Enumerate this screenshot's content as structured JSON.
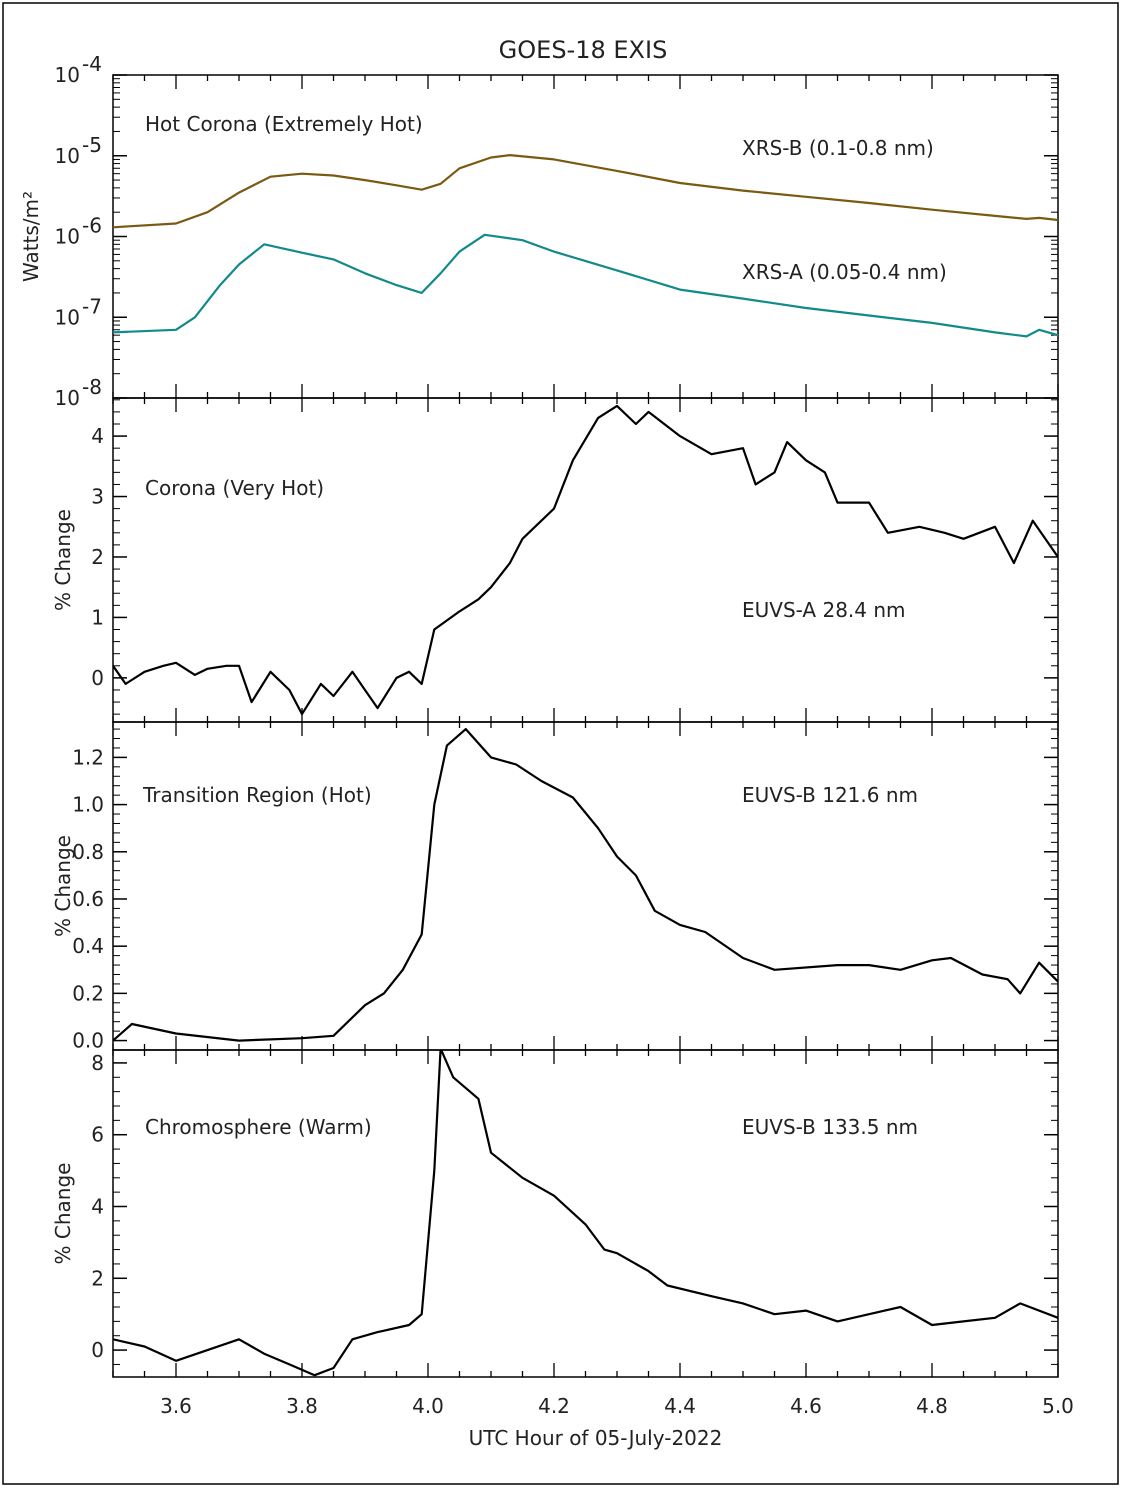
{
  "title": "GOES-18 EXIS",
  "chart_data": [
    {
      "type": "line",
      "panel_label": "Hot Corona (Extremely Hot)",
      "ylabel": "Watts/m²",
      "yscale": "log",
      "ylim": [
        1e-08,
        0.0001
      ],
      "xlim": [
        3.5,
        5.0
      ],
      "yticks": [
        {
          "label": "10",
          "exp": "-4",
          "v": 0.0001
        },
        {
          "label": "10",
          "exp": "-5",
          "v": 1e-05
        },
        {
          "label": "10",
          "exp": "-6",
          "v": 1e-06
        },
        {
          "label": "10",
          "exp": "-7",
          "v": 1e-07
        },
        {
          "label": "10",
          "exp": "-8",
          "v": 1e-08
        }
      ],
      "series": [
        {
          "name": "XRS-B (0.1-0.8 nm)",
          "color": "#7a5a10",
          "label_color": "#9a7a14",
          "x": [
            3.5,
            3.6,
            3.65,
            3.7,
            3.75,
            3.8,
            3.85,
            3.9,
            3.95,
            3.99,
            4.02,
            4.05,
            4.1,
            4.13,
            4.2,
            4.3,
            4.4,
            4.5,
            4.6,
            4.7,
            4.8,
            4.9,
            4.95,
            4.97,
            5.0
          ],
          "y": [
            1.3e-06,
            1.45e-06,
            2e-06,
            3.5e-06,
            5.5e-06,
            6e-06,
            5.7e-06,
            5e-06,
            4.3e-06,
            3.8e-06,
            4.5e-06,
            7e-06,
            9.5e-06,
            1.02e-05,
            9e-06,
            6.5e-06,
            4.6e-06,
            3.7e-06,
            3.1e-06,
            2.6e-06,
            2.15e-06,
            1.8e-06,
            1.65e-06,
            1.7e-06,
            1.6e-06
          ]
        },
        {
          "name": "XRS-A (0.05-0.4 nm)",
          "color": "#138a8a",
          "label_color": "#1a9090",
          "x": [
            3.5,
            3.6,
            3.63,
            3.67,
            3.7,
            3.74,
            3.8,
            3.85,
            3.9,
            3.95,
            3.99,
            4.02,
            4.05,
            4.09,
            4.15,
            4.2,
            4.3,
            4.4,
            4.5,
            4.6,
            4.7,
            4.8,
            4.9,
            4.95,
            4.97,
            5.0
          ],
          "y": [
            6.5e-08,
            7e-08,
            1e-07,
            2.5e-07,
            4.5e-07,
            8e-07,
            6.3e-07,
            5.2e-07,
            3.5e-07,
            2.5e-07,
            2e-07,
            3.5e-07,
            6.5e-07,
            1.05e-06,
            9e-07,
            6.5e-07,
            3.8e-07,
            2.2e-07,
            1.7e-07,
            1.3e-07,
            1.05e-07,
            8.5e-08,
            6.5e-08,
            5.8e-08,
            7e-08,
            6e-08
          ]
        }
      ]
    },
    {
      "type": "line",
      "panel_label": "Corona (Very Hot)",
      "ylabel": "% Change",
      "ylim": [
        -0.73,
        4.63
      ],
      "xlim": [
        3.5,
        5.0
      ],
      "yticks": [
        {
          "label": "0",
          "v": 0
        },
        {
          "label": "1",
          "v": 1
        },
        {
          "label": "2",
          "v": 2
        },
        {
          "label": "3",
          "v": 3
        },
        {
          "label": "4",
          "v": 4
        }
      ],
      "series": [
        {
          "name": "EUVS-A 28.4 nm",
          "color": "#000000",
          "x": [
            3.5,
            3.52,
            3.55,
            3.58,
            3.6,
            3.63,
            3.65,
            3.68,
            3.7,
            3.72,
            3.75,
            3.78,
            3.8,
            3.83,
            3.85,
            3.88,
            3.9,
            3.92,
            3.95,
            3.97,
            3.99,
            4.01,
            4.05,
            4.08,
            4.1,
            4.13,
            4.15,
            4.2,
            4.23,
            4.27,
            4.3,
            4.33,
            4.35,
            4.4,
            4.45,
            4.5,
            4.52,
            4.55,
            4.57,
            4.6,
            4.63,
            4.65,
            4.7,
            4.73,
            4.78,
            4.82,
            4.85,
            4.9,
            4.93,
            4.96,
            5.0
          ],
          "y": [
            0.2,
            -0.1,
            0.1,
            0.2,
            0.25,
            0.05,
            0.15,
            0.2,
            0.2,
            -0.4,
            0.1,
            -0.2,
            -0.6,
            -0.1,
            -0.3,
            0.1,
            -0.2,
            -0.5,
            0.0,
            0.1,
            -0.1,
            0.8,
            1.1,
            1.3,
            1.5,
            1.9,
            2.3,
            2.8,
            3.6,
            4.3,
            4.5,
            4.2,
            4.4,
            4.0,
            3.7,
            3.8,
            3.2,
            3.4,
            3.9,
            3.6,
            3.4,
            2.9,
            2.9,
            2.4,
            2.5,
            2.4,
            2.3,
            2.5,
            1.9,
            2.6,
            2.0
          ]
        }
      ]
    },
    {
      "type": "line",
      "panel_label": "Transition Region (Hot)",
      "ylabel": "% Change",
      "ylim": [
        -0.04,
        1.35
      ],
      "xlim": [
        3.5,
        5.0
      ],
      "yticks": [
        {
          "label": "0.0",
          "v": 0
        },
        {
          "label": "0.2",
          "v": 0.2
        },
        {
          "label": "0.4",
          "v": 0.4
        },
        {
          "label": "0.6",
          "v": 0.6
        },
        {
          "label": "0.8",
          "v": 0.8
        },
        {
          "label": "1.0",
          "v": 1.0
        },
        {
          "label": "1.2",
          "v": 1.2
        }
      ],
      "series": [
        {
          "name": "EUVS-B 121.6 nm",
          "color": "#000000",
          "x": [
            3.5,
            3.53,
            3.6,
            3.7,
            3.8,
            3.85,
            3.9,
            3.93,
            3.96,
            3.99,
            4.01,
            4.03,
            4.06,
            4.1,
            4.14,
            4.18,
            4.23,
            4.27,
            4.3,
            4.33,
            4.36,
            4.4,
            4.44,
            4.5,
            4.55,
            4.65,
            4.7,
            4.75,
            4.8,
            4.83,
            4.88,
            4.92,
            4.94,
            4.97,
            5.0
          ],
          "y": [
            0.0,
            0.07,
            0.03,
            0.0,
            0.01,
            0.02,
            0.15,
            0.2,
            0.3,
            0.45,
            1.0,
            1.25,
            1.32,
            1.2,
            1.17,
            1.1,
            1.03,
            0.9,
            0.78,
            0.7,
            0.55,
            0.49,
            0.46,
            0.35,
            0.3,
            0.32,
            0.32,
            0.3,
            0.34,
            0.35,
            0.28,
            0.26,
            0.2,
            0.33,
            0.25
          ]
        }
      ]
    },
    {
      "type": "line",
      "panel_label": "Chromosphere (Warm)",
      "ylabel": "% Change",
      "xlabel": "UTC Hour of 05-July-2022",
      "ylim": [
        -0.75,
        8.36
      ],
      "xlim": [
        3.5,
        5.0
      ],
      "yticks": [
        {
          "label": "0",
          "v": 0
        },
        {
          "label": "2",
          "v": 2
        },
        {
          "label": "4",
          "v": 4
        },
        {
          "label": "6",
          "v": 6
        },
        {
          "label": "8",
          "v": 8
        }
      ],
      "xticks": [
        "3.6",
        "3.8",
        "4.0",
        "4.2",
        "4.4",
        "4.6",
        "4.8",
        "5.0"
      ],
      "series": [
        {
          "name": "EUVS-B 133.5 nm",
          "color": "#000000",
          "x": [
            3.5,
            3.55,
            3.6,
            3.65,
            3.7,
            3.74,
            3.78,
            3.82,
            3.85,
            3.88,
            3.92,
            3.97,
            3.99,
            4.01,
            4.02,
            4.04,
            4.08,
            4.1,
            4.15,
            4.2,
            4.25,
            4.28,
            4.3,
            4.35,
            4.38,
            4.45,
            4.5,
            4.55,
            4.6,
            4.65,
            4.7,
            4.75,
            4.8,
            4.85,
            4.9,
            4.94,
            5.0
          ],
          "y": [
            0.3,
            0.1,
            -0.3,
            0.0,
            0.3,
            -0.1,
            -0.4,
            -0.7,
            -0.5,
            0.3,
            0.5,
            0.7,
            1.0,
            5.0,
            8.4,
            7.6,
            7.0,
            5.5,
            4.8,
            4.3,
            3.5,
            2.8,
            2.7,
            2.2,
            1.8,
            1.5,
            1.3,
            1.0,
            1.1,
            0.8,
            1.0,
            1.2,
            0.7,
            0.8,
            0.9,
            1.3,
            0.9
          ]
        }
      ]
    }
  ]
}
